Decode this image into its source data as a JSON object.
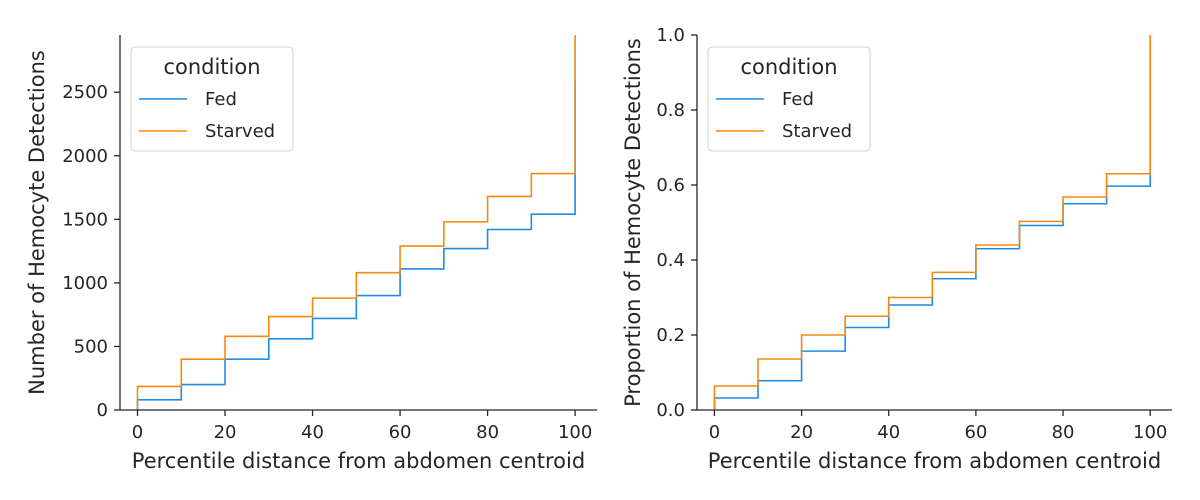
{
  "colors": {
    "fed": "#1f8ce6",
    "starved": "#f5890f"
  },
  "chart_data": [
    {
      "type": "line",
      "subtype": "step",
      "xlabel": "Percentile distance from abdomen centroid",
      "ylabel": "Number of Hemocyte Detections",
      "xlim": [
        -4,
        105
      ],
      "ylim": [
        0,
        2950
      ],
      "xticks": [
        0,
        20,
        40,
        60,
        80,
        100
      ],
      "yticks": [
        0,
        500,
        1000,
        1500,
        2000,
        2500
      ],
      "xtick_labels": [
        "0",
        "20",
        "40",
        "60",
        "80",
        "100"
      ],
      "ytick_labels": [
        "0",
        "500",
        "1000",
        "1500",
        "2000",
        "2500"
      ],
      "legend": {
        "title": "condition",
        "placement": "upper-left",
        "labels": [
          "Fed",
          "Starved"
        ]
      },
      "x": [
        0,
        10,
        20,
        30,
        40,
        50,
        60,
        70,
        80,
        90,
        100
      ],
      "series": [
        {
          "name": "Fed",
          "color": "#1f8ce6",
          "values": [
            80,
            200,
            400,
            560,
            720,
            900,
            1110,
            1270,
            1420,
            1540,
            2590
          ]
        },
        {
          "name": "Starved",
          "color": "#f5890f",
          "values": [
            185,
            400,
            580,
            735,
            880,
            1080,
            1290,
            1480,
            1680,
            1860,
            2950
          ]
        }
      ]
    },
    {
      "type": "line",
      "subtype": "step",
      "xlabel": "Percentile distance from abdomen centroid",
      "ylabel": "Proportion of Hemocyte Detections",
      "xlim": [
        -4,
        105
      ],
      "ylim": [
        0,
        1.0
      ],
      "xticks": [
        0,
        20,
        40,
        60,
        80,
        100
      ],
      "yticks": [
        0,
        0.2,
        0.4,
        0.6,
        0.8,
        1.0
      ],
      "xtick_labels": [
        "0",
        "20",
        "40",
        "60",
        "80",
        "100"
      ],
      "ytick_labels": [
        "0.0",
        "0.2",
        "0.4",
        "0.6",
        "0.8",
        "1.0"
      ],
      "legend": {
        "title": "condition",
        "placement": "upper-left",
        "labels": [
          "Fed",
          "Starved"
        ]
      },
      "x": [
        0,
        10,
        20,
        30,
        40,
        50,
        60,
        70,
        80,
        90,
        100
      ],
      "series": [
        {
          "name": "Fed",
          "color": "#1f8ce6",
          "values": [
            0.032,
            0.078,
            0.157,
            0.22,
            0.28,
            0.35,
            0.43,
            0.492,
            0.55,
            0.597,
            1.0
          ]
        },
        {
          "name": "Starved",
          "color": "#f5890f",
          "values": [
            0.064,
            0.136,
            0.2,
            0.25,
            0.3,
            0.367,
            0.44,
            0.503,
            0.568,
            0.63,
            1.0
          ]
        }
      ]
    }
  ]
}
